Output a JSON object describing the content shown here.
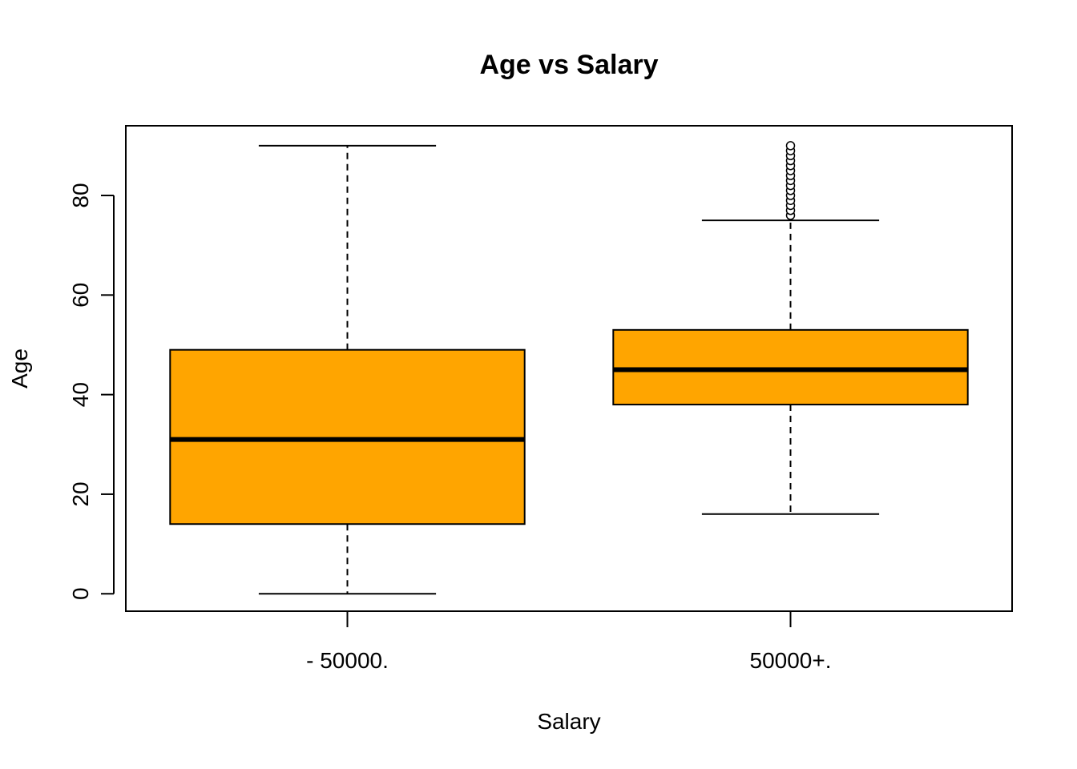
{
  "chart_data": {
    "type": "box",
    "title": "Age vs Salary",
    "xlabel": "Salary",
    "ylabel": "Age",
    "ylim": [
      -3.5,
      94
    ],
    "yticks": [
      0,
      20,
      40,
      60,
      80
    ],
    "grid": false,
    "legend": "none",
    "box_fill": "#FFA500",
    "line_color": "#000000",
    "categories": [
      "- 50000.",
      "50000+."
    ],
    "boxes": [
      {
        "category": "- 50000.",
        "whisker_low": 0,
        "q1": 14,
        "median": 31,
        "q3": 49,
        "whisker_high": 90,
        "outliers": []
      },
      {
        "category": "50000+.",
        "whisker_low": 16,
        "q1": 38,
        "median": 45,
        "q3": 53,
        "whisker_high": 75,
        "outliers": [
          76,
          77,
          78,
          79,
          80,
          81,
          82,
          83,
          84,
          85,
          86,
          87,
          88,
          89,
          90
        ]
      }
    ]
  }
}
